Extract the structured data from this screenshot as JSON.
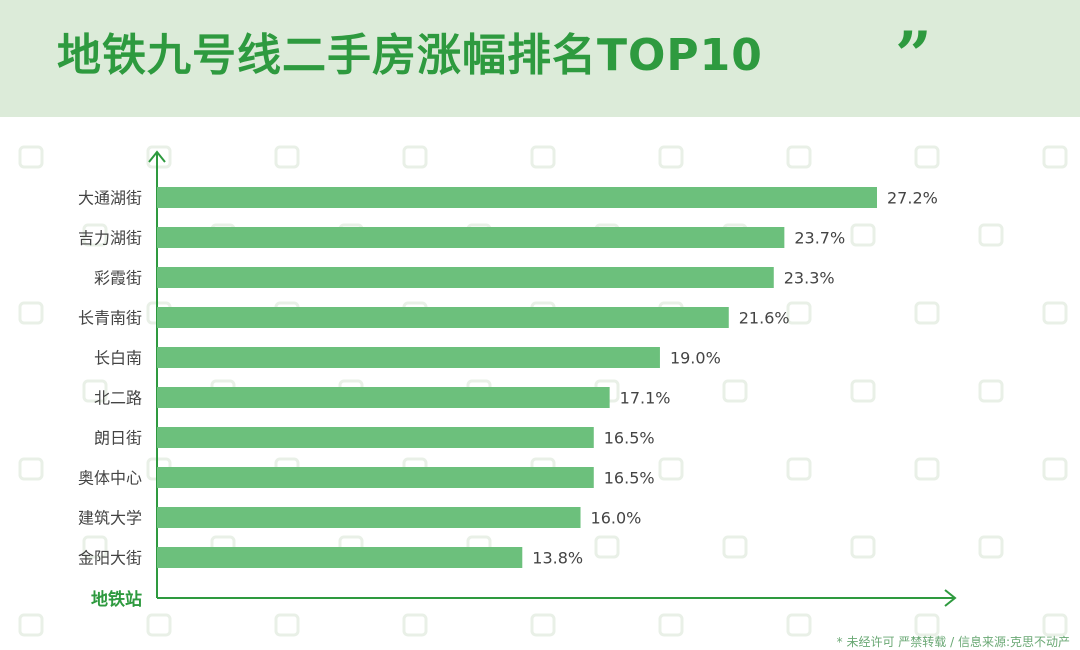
{
  "title": "地铁九号线二手房涨幅排名TOP10",
  "quote_mark": "”",
  "footnote": "* 未经许可 严禁转载 / 信息来源:克思不动产",
  "colors": {
    "bar": "#6cc07c",
    "axis": "#2e9a3f",
    "title": "#2e9a3f",
    "label": "#444444",
    "header_bg": "#dcebd9"
  },
  "chart_data": {
    "type": "bar",
    "orientation": "horizontal",
    "categories": [
      "大通湖街",
      "吉力湖街",
      "彩霞街",
      "长青南街",
      "长白南",
      "北二路",
      "朗日街",
      "奥体中心",
      "建筑大学",
      "金阳大街"
    ],
    "values": [
      27.2,
      23.7,
      23.3,
      21.6,
      19.0,
      17.1,
      16.5,
      16.5,
      16.0,
      13.8
    ],
    "value_labels": [
      "27.2%",
      "23.7%",
      "23.3%",
      "21.6%",
      "19.0%",
      "17.1%",
      "16.5%",
      "16.5%",
      "16.0%",
      "13.8%"
    ],
    "title": "地铁九号线二手房涨幅排名TOP10",
    "ylabel": "地铁站",
    "xlabel": "",
    "xlim": [
      0,
      30
    ],
    "grid": false,
    "legend": "none"
  }
}
